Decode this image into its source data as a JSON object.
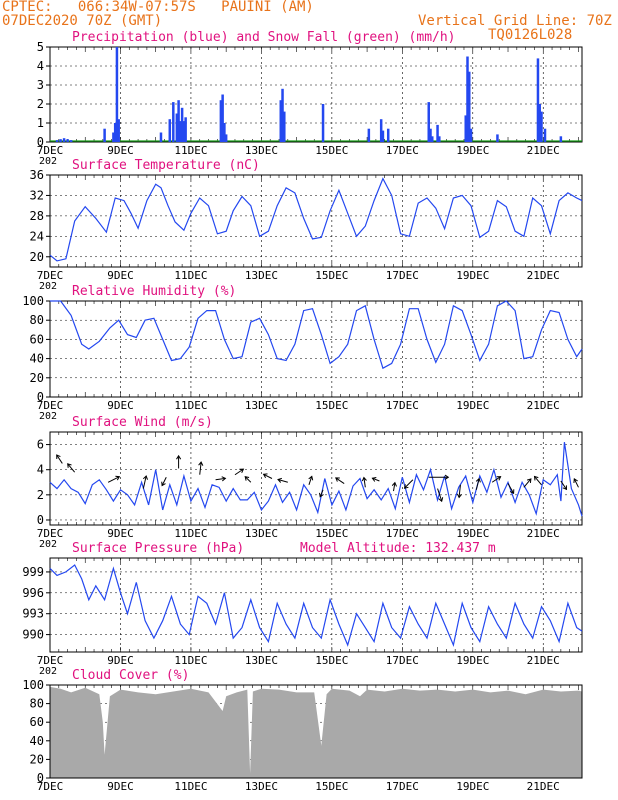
{
  "header": {
    "left_line1": "CPTEC:   066:34W-07:57S   PAUINI (AM)",
    "left_line2": "07DEC2020 70Z (GMT)",
    "right_line1": "Vertical Grid Line: 70Z",
    "right_line2": "TQ0126L028"
  },
  "colors": {
    "header": "#e8731a",
    "title": "#e0117f",
    "line": "#2448f0",
    "snow": "#1aa01a",
    "cloud": "#a9a9a9",
    "arrow": "#000000"
  },
  "x_axis": {
    "range_days": [
      7,
      22.1
    ],
    "tick_labels": [
      {
        "day": 7,
        "label": "7DEC"
      },
      {
        "day": 9,
        "label": "9DEC"
      },
      {
        "day": 11,
        "label": "11DEC"
      },
      {
        "day": 13,
        "label": "13DEC"
      },
      {
        "day": 15,
        "label": "15DEC"
      },
      {
        "day": 17,
        "label": "17DEC"
      },
      {
        "day": 19,
        "label": "19DEC"
      },
      {
        "day": 21,
        "label": "21DEC"
      }
    ],
    "year_fragment": "202"
  },
  "chart_data": [
    {
      "id": "precip",
      "type": "bar",
      "title": "Precipitation (blue) and Snow Fall (green) (mm/h)",
      "ylim": [
        0,
        5
      ],
      "yticks": [
        "0",
        "1",
        "2",
        "3",
        "4",
        "5"
      ],
      "x": [
        7.2,
        7.3,
        7.4,
        7.5,
        7.6,
        8.55,
        8.8,
        8.85,
        8.9,
        8.95,
        10.15,
        10.4,
        10.5,
        10.6,
        10.65,
        10.7,
        10.75,
        10.8,
        10.85,
        11.85,
        11.9,
        11.95,
        12.0,
        13.55,
        13.6,
        13.65,
        14.75,
        16.05,
        16.4,
        16.45,
        16.6,
        17.75,
        17.8,
        17.85,
        18.0,
        18.05,
        18.8,
        18.85,
        18.9,
        18.95,
        19.7,
        20.85,
        20.9,
        20.95,
        21.05,
        21.5
      ],
      "precip": [
        0.1,
        0.15,
        0.2,
        0.15,
        0.1,
        0.7,
        0.5,
        1.0,
        5.0,
        1.2,
        0.5,
        1.2,
        2.1,
        1.5,
        2.2,
        1.1,
        1.8,
        1.1,
        1.3,
        2.2,
        2.5,
        1.0,
        0.4,
        2.2,
        2.8,
        1.6,
        2.0,
        0.7,
        1.2,
        0.6,
        0.7,
        2.1,
        0.7,
        0.3,
        0.9,
        0.3,
        1.4,
        4.5,
        3.7,
        0.7,
        0.4,
        4.4,
        2.0,
        1.6,
        0.7,
        0.3
      ],
      "snow": []
    },
    {
      "id": "temp",
      "type": "line",
      "title": "Surface Temperature (nC)",
      "ylim": [
        18,
        36
      ],
      "yticks": [
        "20",
        "24",
        "28",
        "32",
        "36"
      ],
      "ytick_values": [
        20,
        24,
        28,
        32,
        36
      ],
      "x": [
        7.0,
        7.2,
        7.45,
        7.7,
        8.0,
        8.3,
        8.6,
        8.85,
        9.1,
        9.3,
        9.5,
        9.75,
        10.0,
        10.15,
        10.35,
        10.55,
        10.8,
        11.0,
        11.25,
        11.5,
        11.75,
        12.0,
        12.2,
        12.45,
        12.7,
        12.95,
        13.2,
        13.45,
        13.7,
        13.95,
        14.2,
        14.45,
        14.7,
        14.95,
        15.2,
        15.45,
        15.7,
        15.95,
        16.2,
        16.45,
        16.7,
        16.95,
        17.2,
        17.45,
        17.7,
        17.95,
        18.2,
        18.45,
        18.7,
        18.95,
        19.2,
        19.45,
        19.7,
        19.95,
        20.2,
        20.45,
        20.7,
        20.95,
        21.2,
        21.45,
        21.7,
        21.95,
        22.1
      ],
      "y": [
        20.3,
        19.2,
        19.6,
        27.0,
        29.8,
        27.5,
        24.8,
        31.5,
        31.0,
        28.5,
        25.6,
        31.0,
        34.2,
        33.5,
        30.0,
        26.8,
        25.2,
        28.5,
        31.5,
        30.0,
        24.5,
        25.0,
        29.0,
        31.8,
        30.0,
        24.0,
        25.0,
        30.0,
        33.5,
        32.5,
        27.5,
        23.5,
        23.8,
        29.0,
        33.0,
        28.5,
        24.0,
        26.0,
        31.0,
        35.3,
        32.0,
        24.5,
        24.0,
        30.5,
        31.5,
        29.5,
        25.5,
        31.5,
        32.0,
        30.0,
        23.8,
        25.0,
        31.0,
        29.8,
        25.0,
        24.0,
        31.5,
        30.0,
        24.5,
        31.0,
        32.5,
        31.5,
        31.0
      ]
    },
    {
      "id": "rh",
      "type": "line",
      "title": "Relative Humidity (%)",
      "ylim": [
        0,
        100
      ],
      "yticks": [
        "0",
        "20",
        "40",
        "60",
        "80",
        "100"
      ],
      "ytick_values": [
        0,
        20,
        40,
        60,
        80,
        100
      ],
      "x": [
        7.0,
        7.3,
        7.6,
        7.9,
        8.1,
        8.4,
        8.7,
        8.95,
        9.2,
        9.45,
        9.7,
        9.95,
        10.2,
        10.45,
        10.7,
        10.95,
        11.2,
        11.45,
        11.7,
        11.95,
        12.2,
        12.45,
        12.7,
        12.95,
        13.2,
        13.45,
        13.7,
        13.95,
        14.2,
        14.45,
        14.7,
        14.95,
        15.2,
        15.45,
        15.7,
        15.95,
        16.2,
        16.45,
        16.7,
        16.95,
        17.2,
        17.45,
        17.7,
        17.95,
        18.2,
        18.45,
        18.7,
        18.95,
        19.2,
        19.45,
        19.7,
        19.95,
        20.2,
        20.45,
        20.7,
        20.95,
        21.2,
        21.45,
        21.7,
        21.95,
        22.1
      ],
      "y": [
        100,
        100,
        85,
        55,
        50,
        58,
        72,
        80,
        65,
        62,
        80,
        82,
        60,
        38,
        40,
        52,
        82,
        90,
        90,
        60,
        40,
        42,
        78,
        82,
        65,
        40,
        38,
        55,
        90,
        92,
        65,
        35,
        42,
        55,
        90,
        95,
        60,
        30,
        35,
        55,
        92,
        92,
        60,
        36,
        55,
        95,
        90,
        65,
        38,
        55,
        95,
        100,
        90,
        40,
        42,
        70,
        90,
        88,
        60,
        42,
        50
      ]
    },
    {
      "id": "wind",
      "type": "line",
      "title": "Surface Wind (m/s)",
      "ylim": [
        -0.4,
        7
      ],
      "yticks": [
        "0",
        "2",
        "4",
        "6"
      ],
      "ytick_values": [
        0,
        2,
        4,
        6
      ],
      "x": [
        7.0,
        7.2,
        7.4,
        7.6,
        7.8,
        8.0,
        8.2,
        8.4,
        8.6,
        8.8,
        9.0,
        9.2,
        9.4,
        9.6,
        9.8,
        10.0,
        10.2,
        10.4,
        10.6,
        10.8,
        11.0,
        11.2,
        11.4,
        11.6,
        11.8,
        12.0,
        12.2,
        12.4,
        12.6,
        12.8,
        13.0,
        13.2,
        13.4,
        13.6,
        13.8,
        14.0,
        14.2,
        14.4,
        14.6,
        14.8,
        15.0,
        15.2,
        15.4,
        15.6,
        15.8,
        16.0,
        16.2,
        16.4,
        16.6,
        16.8,
        17.0,
        17.2,
        17.4,
        17.6,
        17.8,
        18.0,
        18.2,
        18.4,
        18.6,
        18.8,
        19.0,
        19.2,
        19.4,
        19.6,
        19.8,
        20.0,
        20.2,
        20.4,
        20.6,
        20.8,
        21.0,
        21.2,
        21.4,
        21.5,
        21.6,
        21.8,
        22.0,
        22.1
      ],
      "y": [
        3.0,
        2.5,
        3.2,
        2.5,
        2.2,
        1.3,
        2.8,
        3.2,
        2.4,
        1.5,
        2.4,
        2.0,
        1.2,
        3.0,
        1.2,
        4.0,
        0.8,
        2.8,
        1.2,
        3.5,
        1.5,
        2.5,
        1.0,
        2.8,
        2.6,
        1.5,
        2.5,
        1.6,
        1.6,
        2.2,
        0.8,
        1.5,
        2.8,
        1.4,
        2.2,
        0.8,
        2.8,
        2.0,
        0.6,
        3.3,
        1.2,
        2.3,
        0.8,
        2.7,
        3.3,
        1.7,
        2.4,
        1.6,
        2.5,
        0.9,
        3.4,
        1.4,
        3.6,
        2.4,
        4.0,
        1.6,
        3.5,
        0.9,
        2.6,
        3.5,
        1.4,
        3.5,
        2.2,
        4.0,
        1.8,
        3.0,
        1.4,
        3.0,
        2.0,
        0.5,
        3.2,
        2.8,
        3.6,
        1.5,
        6.2,
        2.5,
        1.2,
        0.3
      ]
    },
    {
      "id": "pressure",
      "type": "line",
      "title": "Surface Pressure (hPa)",
      "subtitle": "Model Altitude: 132.437 m",
      "ylim": [
        987.5,
        1001
      ],
      "yticks": [
        "990",
        "993",
        "996",
        "999"
      ],
      "ytick_values": [
        990,
        993,
        996,
        999
      ],
      "x": [
        7.0,
        7.2,
        7.45,
        7.7,
        7.9,
        8.1,
        8.3,
        8.55,
        8.8,
        9.0,
        9.2,
        9.45,
        9.7,
        9.95,
        10.2,
        10.45,
        10.7,
        10.95,
        11.2,
        11.45,
        11.7,
        11.95,
        12.2,
        12.45,
        12.7,
        12.95,
        13.2,
        13.45,
        13.7,
        13.95,
        14.2,
        14.45,
        14.7,
        14.95,
        15.2,
        15.45,
        15.7,
        15.95,
        16.2,
        16.45,
        16.7,
        16.95,
        17.2,
        17.45,
        17.7,
        17.95,
        18.2,
        18.45,
        18.7,
        18.95,
        19.2,
        19.45,
        19.7,
        19.95,
        20.2,
        20.45,
        20.7,
        20.95,
        21.2,
        21.45,
        21.7,
        21.95,
        22.1
      ],
      "y": [
        999.5,
        998.5,
        999.0,
        1000.0,
        998.0,
        995.0,
        997.0,
        995.0,
        999.5,
        996.0,
        993.0,
        997.5,
        992.0,
        989.5,
        992.0,
        995.5,
        991.5,
        990.0,
        995.5,
        994.5,
        991.5,
        996.0,
        989.5,
        991.0,
        995.0,
        991.0,
        989.0,
        994.5,
        991.5,
        989.5,
        994.5,
        991.0,
        989.5,
        995.0,
        991.5,
        988.5,
        993.0,
        991.0,
        989.0,
        994.5,
        991.0,
        989.5,
        994.0,
        991.5,
        989.5,
        994.5,
        991.5,
        988.5,
        994.5,
        991.0,
        989.0,
        994.0,
        991.5,
        989.5,
        994.5,
        991.5,
        989.5,
        994.0,
        992.0,
        989.0,
        994.5,
        991.0,
        990.5
      ]
    },
    {
      "id": "cloud",
      "type": "area",
      "title": "Cloud Cover (%)",
      "ylim": [
        0,
        100
      ],
      "yticks": [
        "0",
        "20",
        "40",
        "60",
        "80",
        "100"
      ],
      "ytick_values": [
        0,
        20,
        40,
        60,
        80,
        100
      ],
      "x": [
        7.0,
        7.3,
        7.6,
        8.0,
        8.4,
        8.5,
        8.55,
        8.7,
        9.0,
        9.5,
        10.0,
        10.5,
        11.0,
        11.5,
        11.9,
        12.0,
        12.3,
        12.6,
        12.68,
        12.76,
        13.0,
        13.5,
        14.0,
        14.5,
        14.7,
        14.85,
        15.0,
        15.5,
        15.8,
        16.0,
        16.5,
        17.0,
        17.5,
        18.0,
        18.5,
        19.0,
        19.5,
        20.0,
        20.5,
        21.0,
        21.5,
        22.0,
        22.1
      ],
      "y": [
        98,
        96,
        92,
        97,
        90,
        60,
        25,
        88,
        95,
        92,
        90,
        93,
        96,
        92,
        72,
        88,
        92,
        95,
        5,
        93,
        96,
        95,
        92,
        92,
        35,
        90,
        96,
        94,
        88,
        95,
        93,
        96,
        94,
        95,
        93,
        95,
        92,
        94,
        90,
        95,
        93,
        94,
        93
      ]
    }
  ],
  "wind_vectors": {
    "scale_note": "direction arrows at selected times",
    "points": [
      {
        "x": 7.35,
        "y": 4.5,
        "dx": -0.4,
        "dy": 0.6
      },
      {
        "x": 7.7,
        "y": 3.8,
        "dx": -0.5,
        "dy": 0.6
      },
      {
        "x": 8.65,
        "y": 3.0,
        "dx": 0.8,
        "dy": 0.4
      },
      {
        "x": 9.65,
        "y": 2.5,
        "dx": 0.2,
        "dy": 0.9
      },
      {
        "x": 10.3,
        "y": 3.4,
        "dx": -0.3,
        "dy": -0.6
      },
      {
        "x": 10.65,
        "y": 4.1,
        "dx": 0.0,
        "dy": 0.9
      },
      {
        "x": 11.25,
        "y": 3.6,
        "dx": 0.1,
        "dy": 0.9
      },
      {
        "x": 11.7,
        "y": 3.2,
        "dx": 0.7,
        "dy": 0.1
      },
      {
        "x": 12.25,
        "y": 3.6,
        "dx": 0.6,
        "dy": 0.4
      },
      {
        "x": 12.7,
        "y": 3.0,
        "dx": -0.4,
        "dy": 0.4
      },
      {
        "x": 13.3,
        "y": 3.3,
        "dx": -0.6,
        "dy": 0.3
      },
      {
        "x": 13.75,
        "y": 3.0,
        "dx": -0.7,
        "dy": 0.2
      },
      {
        "x": 14.35,
        "y": 2.8,
        "dx": 0.2,
        "dy": 0.6
      },
      {
        "x": 14.75,
        "y": 2.4,
        "dx": -0.2,
        "dy": -0.5
      },
      {
        "x": 15.35,
        "y": 2.9,
        "dx": -0.6,
        "dy": 0.4
      },
      {
        "x": 15.95,
        "y": 2.6,
        "dx": -0.1,
        "dy": 0.7
      },
      {
        "x": 16.35,
        "y": 3.1,
        "dx": -0.5,
        "dy": 0.2
      },
      {
        "x": 16.75,
        "y": 2.3,
        "dx": 0.1,
        "dy": 0.6
      },
      {
        "x": 17.3,
        "y": 3.2,
        "dx": -0.6,
        "dy": -0.6
      },
      {
        "x": 17.75,
        "y": 3.4,
        "dx": 1.4,
        "dy": 0.0
      },
      {
        "x": 18.0,
        "y": 2.5,
        "dx": 0.3,
        "dy": -0.9
      },
      {
        "x": 18.65,
        "y": 2.8,
        "dx": -0.1,
        "dy": -0.9
      },
      {
        "x": 19.1,
        "y": 2.4,
        "dx": 0.2,
        "dy": 0.8
      },
      {
        "x": 19.55,
        "y": 3.0,
        "dx": 0.6,
        "dy": 0.4
      },
      {
        "x": 20.0,
        "y": 2.9,
        "dx": 0.4,
        "dy": -0.7
      },
      {
        "x": 20.45,
        "y": 2.6,
        "dx": 0.5,
        "dy": 0.6
      },
      {
        "x": 20.95,
        "y": 2.8,
        "dx": -0.5,
        "dy": 0.6
      },
      {
        "x": 21.5,
        "y": 3.1,
        "dx": 0.4,
        "dy": -0.6
      },
      {
        "x": 22.0,
        "y": 2.6,
        "dx": -0.3,
        "dy": 0.6
      }
    ]
  }
}
